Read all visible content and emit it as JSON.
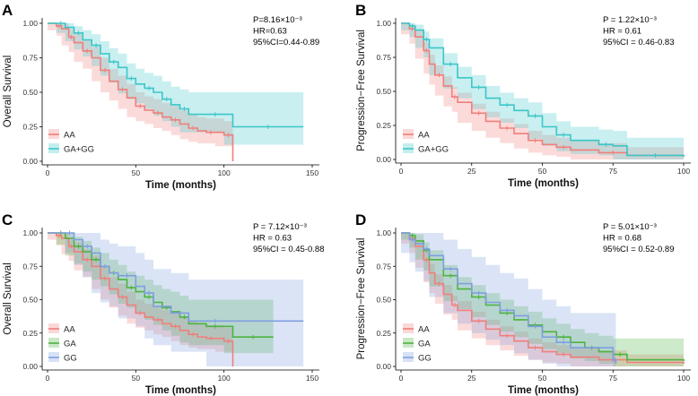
{
  "figure": {
    "colors": {
      "AA": "#F07F7A",
      "GA": "#4DB33F",
      "GG": "#7F9EE0",
      "GA+GG": "#3CC6C8"
    }
  },
  "chart_data": [
    {
      "panel": "A",
      "type": "line",
      "ylabel": "Overall Survival",
      "xlabel": "Time (months)",
      "xlim": [
        0,
        150
      ],
      "ylim": [
        0,
        1.0
      ],
      "xticks": [
        "0",
        "50",
        "100",
        "150"
      ],
      "yticks": [
        "0.00",
        "0.25",
        "0.50",
        "0.75",
        "1.00"
      ],
      "stats": [
        "P=8.16×10⁻³",
        "HR=0.63",
        "95%CI=0.44-0.89"
      ],
      "series": [
        {
          "name": "AA",
          "color": "#F07F7A",
          "x": [
            0,
            5,
            8,
            12,
            15,
            20,
            25,
            30,
            35,
            40,
            45,
            50,
            55,
            60,
            65,
            70,
            75,
            80,
            85,
            90,
            95,
            100,
            105,
            105
          ],
          "values": [
            1.0,
            0.98,
            0.96,
            0.9,
            0.86,
            0.8,
            0.75,
            0.66,
            0.58,
            0.52,
            0.46,
            0.4,
            0.37,
            0.35,
            0.32,
            0.3,
            0.27,
            0.24,
            0.22,
            0.21,
            0.21,
            0.19,
            0.19,
            0.0
          ],
          "ci_upper": [
            1.0,
            1.0,
            1.0,
            0.96,
            0.93,
            0.88,
            0.83,
            0.75,
            0.67,
            0.62,
            0.56,
            0.5,
            0.47,
            0.45,
            0.42,
            0.4,
            0.37,
            0.34,
            0.32,
            0.31,
            0.31,
            0.29,
            0.29,
            0.0
          ],
          "ci_lower": [
            1.0,
            0.95,
            0.91,
            0.84,
            0.79,
            0.72,
            0.67,
            0.58,
            0.5,
            0.44,
            0.38,
            0.32,
            0.29,
            0.27,
            0.24,
            0.22,
            0.19,
            0.16,
            0.14,
            0.13,
            0.13,
            0.11,
            0.11,
            0.0
          ]
        },
        {
          "name": "GA+GG",
          "color": "#3CC6C8",
          "x": [
            0,
            5,
            10,
            15,
            20,
            25,
            30,
            35,
            40,
            45,
            50,
            55,
            60,
            65,
            70,
            75,
            80,
            90,
            100,
            105,
            145
          ],
          "values": [
            1.0,
            1.0,
            0.97,
            0.93,
            0.88,
            0.84,
            0.78,
            0.72,
            0.68,
            0.6,
            0.56,
            0.53,
            0.5,
            0.45,
            0.41,
            0.38,
            0.34,
            0.34,
            0.34,
            0.25,
            0.25
          ],
          "ci_upper": [
            1.0,
            1.0,
            1.0,
            0.98,
            0.95,
            0.92,
            0.87,
            0.82,
            0.78,
            0.71,
            0.67,
            0.64,
            0.62,
            0.58,
            0.54,
            0.52,
            0.5,
            0.5,
            0.5,
            0.5,
            0.5
          ],
          "ci_lower": [
            1.0,
            1.0,
            0.93,
            0.87,
            0.81,
            0.76,
            0.69,
            0.62,
            0.57,
            0.49,
            0.45,
            0.42,
            0.38,
            0.33,
            0.29,
            0.25,
            0.21,
            0.21,
            0.21,
            0.12,
            0.12
          ]
        }
      ]
    },
    {
      "panel": "B",
      "type": "line",
      "ylabel": "Progression−Free Survival",
      "xlabel": "Time (months)",
      "xlim": [
        0,
        100
      ],
      "ylim": [
        0,
        1.0
      ],
      "xticks": [
        "0",
        "25",
        "50",
        "75",
        "100"
      ],
      "yticks": [
        "0.00",
        "0.25",
        "0.50",
        "0.75",
        "1.00"
      ],
      "stats": [
        "P = 1.22×10⁻³",
        "HR = 0.61",
        "95%CI = 0.46-0.83"
      ],
      "series": [
        {
          "name": "AA",
          "color": "#F07F7A",
          "x": [
            0,
            3,
            5,
            8,
            10,
            12,
            15,
            18,
            20,
            25,
            30,
            35,
            40,
            45,
            50,
            55,
            60,
            70,
            80,
            100
          ],
          "values": [
            1.0,
            0.96,
            0.9,
            0.8,
            0.7,
            0.62,
            0.54,
            0.46,
            0.42,
            0.34,
            0.28,
            0.23,
            0.19,
            0.14,
            0.11,
            0.09,
            0.07,
            0.05,
            0.03,
            0.02
          ],
          "ci_upper": [
            1.0,
            0.99,
            0.95,
            0.86,
            0.77,
            0.69,
            0.61,
            0.53,
            0.49,
            0.41,
            0.35,
            0.3,
            0.26,
            0.21,
            0.18,
            0.16,
            0.14,
            0.12,
            0.09,
            0.08
          ],
          "ci_lower": [
            1.0,
            0.92,
            0.85,
            0.74,
            0.63,
            0.55,
            0.47,
            0.39,
            0.35,
            0.27,
            0.21,
            0.16,
            0.12,
            0.08,
            0.05,
            0.03,
            0.02,
            0.0,
            0.0,
            0.0
          ]
        },
        {
          "name": "GA+GG",
          "color": "#3CC6C8",
          "x": [
            0,
            3,
            5,
            8,
            10,
            15,
            20,
            25,
            30,
            35,
            40,
            45,
            50,
            55,
            60,
            70,
            75,
            80,
            100
          ],
          "values": [
            1.0,
            0.98,
            0.95,
            0.88,
            0.82,
            0.7,
            0.6,
            0.53,
            0.45,
            0.4,
            0.36,
            0.32,
            0.24,
            0.18,
            0.14,
            0.11,
            0.1,
            0.03,
            0.02
          ],
          "ci_upper": [
            1.0,
            1.0,
            0.99,
            0.94,
            0.89,
            0.78,
            0.68,
            0.62,
            0.54,
            0.49,
            0.45,
            0.42,
            0.34,
            0.28,
            0.24,
            0.22,
            0.21,
            0.16,
            0.15
          ],
          "ci_lower": [
            1.0,
            0.95,
            0.9,
            0.82,
            0.75,
            0.62,
            0.52,
            0.45,
            0.37,
            0.31,
            0.27,
            0.23,
            0.15,
            0.1,
            0.06,
            0.04,
            0.03,
            0.0,
            0.0
          ]
        }
      ]
    },
    {
      "panel": "C",
      "type": "line",
      "ylabel": "Overall Survival",
      "xlabel": "Time (months)",
      "xlim": [
        0,
        150
      ],
      "ylim": [
        0,
        1.0
      ],
      "xticks": [
        "0",
        "50",
        "100",
        "150"
      ],
      "yticks": [
        "0.00",
        "0.25",
        "0.50",
        "0.75",
        "1.00"
      ],
      "stats": [
        "P = 7.12×10⁻³",
        "HR = 0.63",
        "95%CI = 0.45-0.88"
      ],
      "series": [
        {
          "name": "AA",
          "color": "#F07F7A",
          "x": [
            0,
            5,
            8,
            12,
            15,
            20,
            25,
            30,
            35,
            40,
            45,
            50,
            55,
            60,
            65,
            70,
            75,
            80,
            85,
            90,
            95,
            100,
            105,
            105
          ],
          "values": [
            1.0,
            0.98,
            0.96,
            0.9,
            0.86,
            0.8,
            0.75,
            0.66,
            0.58,
            0.52,
            0.46,
            0.4,
            0.37,
            0.35,
            0.32,
            0.3,
            0.27,
            0.24,
            0.22,
            0.21,
            0.21,
            0.19,
            0.19,
            0.0
          ],
          "ci_upper": [
            1.0,
            1.0,
            1.0,
            0.96,
            0.93,
            0.88,
            0.83,
            0.75,
            0.67,
            0.62,
            0.56,
            0.5,
            0.47,
            0.45,
            0.42,
            0.4,
            0.37,
            0.34,
            0.32,
            0.31,
            0.31,
            0.29,
            0.29,
            0.0
          ],
          "ci_lower": [
            1.0,
            0.95,
            0.91,
            0.84,
            0.79,
            0.72,
            0.67,
            0.58,
            0.5,
            0.44,
            0.38,
            0.32,
            0.29,
            0.27,
            0.24,
            0.22,
            0.19,
            0.16,
            0.14,
            0.13,
            0.13,
            0.11,
            0.11,
            0.0
          ]
        },
        {
          "name": "GA",
          "color": "#4DB33F",
          "x": [
            0,
            5,
            10,
            15,
            20,
            25,
            30,
            35,
            40,
            45,
            50,
            55,
            60,
            65,
            70,
            75,
            80,
            90,
            100,
            105,
            128
          ],
          "values": [
            1.0,
            1.0,
            0.96,
            0.9,
            0.86,
            0.8,
            0.75,
            0.7,
            0.65,
            0.59,
            0.56,
            0.52,
            0.48,
            0.44,
            0.41,
            0.37,
            0.32,
            0.3,
            0.3,
            0.22,
            0.22
          ],
          "ci_upper": [
            1.0,
            1.0,
            1.0,
            0.97,
            0.94,
            0.89,
            0.85,
            0.8,
            0.76,
            0.71,
            0.68,
            0.65,
            0.61,
            0.58,
            0.56,
            0.53,
            0.5,
            0.5,
            0.5,
            0.5,
            0.5
          ],
          "ci_lower": [
            1.0,
            1.0,
            0.91,
            0.83,
            0.77,
            0.71,
            0.65,
            0.6,
            0.54,
            0.47,
            0.44,
            0.4,
            0.35,
            0.31,
            0.27,
            0.23,
            0.18,
            0.16,
            0.16,
            0.1,
            0.1
          ]
        },
        {
          "name": "GG",
          "color": "#7F9EE0",
          "x": [
            0,
            10,
            15,
            20,
            25,
            30,
            35,
            40,
            50,
            55,
            60,
            70,
            80,
            90,
            100,
            145
          ],
          "values": [
            1.0,
            1.0,
            0.95,
            0.9,
            0.85,
            0.75,
            0.7,
            0.68,
            0.6,
            0.55,
            0.45,
            0.4,
            0.34,
            0.34,
            0.34,
            0.34
          ],
          "ci_upper": [
            1.0,
            1.0,
            1.0,
            1.0,
            1.0,
            0.95,
            0.92,
            0.9,
            0.85,
            0.8,
            0.73,
            0.7,
            0.65,
            0.65,
            0.65,
            0.65
          ],
          "ci_lower": [
            1.0,
            1.0,
            0.85,
            0.76,
            0.67,
            0.55,
            0.48,
            0.45,
            0.36,
            0.3,
            0.21,
            0.16,
            0.11,
            0.11,
            0.0,
            0.0
          ]
        }
      ]
    },
    {
      "panel": "D",
      "type": "line",
      "ylabel": "Progression−Free Survival",
      "xlabel": "Time (months)",
      "xlim": [
        0,
        100
      ],
      "ylim": [
        0,
        1.0
      ],
      "xticks": [
        "0",
        "25",
        "50",
        "75",
        "100"
      ],
      "yticks": [
        "0.00",
        "0.25",
        "0.50",
        "0.75",
        "1.00"
      ],
      "stats": [
        "P = 5.01×10⁻³",
        "HR = 0.68",
        "95%CI = 0.52-0.89"
      ],
      "series": [
        {
          "name": "AA",
          "color": "#F07F7A",
          "x": [
            0,
            3,
            5,
            8,
            10,
            12,
            15,
            18,
            20,
            25,
            30,
            35,
            40,
            45,
            50,
            55,
            60,
            70,
            80,
            100
          ],
          "values": [
            1.0,
            0.96,
            0.9,
            0.8,
            0.7,
            0.62,
            0.54,
            0.46,
            0.42,
            0.34,
            0.28,
            0.23,
            0.19,
            0.14,
            0.11,
            0.09,
            0.07,
            0.05,
            0.03,
            0.02
          ],
          "ci_upper": [
            1.0,
            0.99,
            0.95,
            0.86,
            0.77,
            0.69,
            0.61,
            0.53,
            0.49,
            0.41,
            0.35,
            0.3,
            0.26,
            0.21,
            0.18,
            0.16,
            0.14,
            0.12,
            0.09,
            0.08
          ],
          "ci_lower": [
            1.0,
            0.92,
            0.85,
            0.74,
            0.63,
            0.55,
            0.47,
            0.39,
            0.35,
            0.27,
            0.21,
            0.16,
            0.12,
            0.08,
            0.05,
            0.03,
            0.02,
            0.0,
            0.0,
            0.0
          ]
        },
        {
          "name": "GA",
          "color": "#4DB33F",
          "x": [
            0,
            3,
            5,
            8,
            10,
            15,
            20,
            25,
            30,
            35,
            40,
            45,
            50,
            55,
            60,
            65,
            70,
            75,
            80,
            100
          ],
          "values": [
            1.0,
            0.98,
            0.94,
            0.87,
            0.8,
            0.68,
            0.58,
            0.52,
            0.46,
            0.4,
            0.35,
            0.31,
            0.26,
            0.22,
            0.18,
            0.14,
            0.11,
            0.09,
            0.05,
            0.04
          ],
          "ci_upper": [
            1.0,
            1.0,
            0.99,
            0.93,
            0.87,
            0.76,
            0.67,
            0.61,
            0.55,
            0.5,
            0.45,
            0.41,
            0.36,
            0.32,
            0.28,
            0.25,
            0.23,
            0.21,
            0.21,
            0.21
          ],
          "ci_lower": [
            1.0,
            0.95,
            0.89,
            0.8,
            0.72,
            0.6,
            0.49,
            0.43,
            0.37,
            0.31,
            0.26,
            0.22,
            0.17,
            0.13,
            0.1,
            0.06,
            0.04,
            0.02,
            0.0,
            0.0
          ]
        },
        {
          "name": "GG",
          "color": "#7F9EE0",
          "x": [
            0,
            3,
            5,
            8,
            10,
            15,
            20,
            25,
            30,
            35,
            40,
            45,
            50,
            55,
            60,
            75,
            76
          ],
          "values": [
            1.0,
            0.95,
            0.92,
            0.88,
            0.83,
            0.73,
            0.62,
            0.55,
            0.48,
            0.42,
            0.38,
            0.3,
            0.22,
            0.18,
            0.14,
            0.05,
            0.02
          ],
          "ci_upper": [
            1.0,
            1.0,
            1.0,
            1.0,
            1.0,
            0.95,
            0.88,
            0.82,
            0.76,
            0.7,
            0.66,
            0.58,
            0.5,
            0.45,
            0.4,
            0.4,
            0.4
          ],
          "ci_lower": [
            1.0,
            0.85,
            0.78,
            0.71,
            0.64,
            0.52,
            0.4,
            0.32,
            0.25,
            0.2,
            0.16,
            0.1,
            0.05,
            0.02,
            0.0,
            0.0,
            0.0
          ]
        }
      ]
    }
  ]
}
